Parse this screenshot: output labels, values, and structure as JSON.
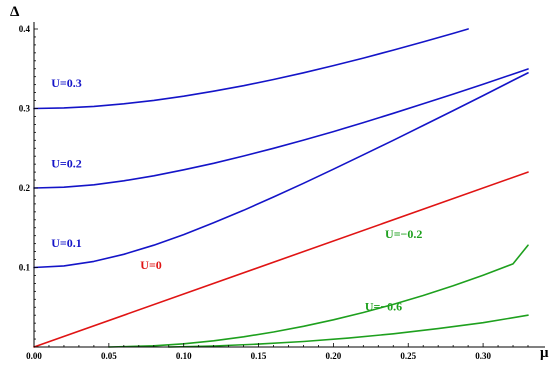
{
  "chart_data": {
    "type": "line",
    "title": "",
    "xlabel": "μ",
    "ylabel": "Δ",
    "xlim": [
      0.0,
      0.33
    ],
    "ylim": [
      0.0,
      0.4
    ],
    "x_ticks": [
      "0.00",
      "0.05",
      "0.10",
      "0.15",
      "0.20",
      "0.25",
      "0.30"
    ],
    "x_tick_values": [
      0.0,
      0.05,
      0.1,
      0.15,
      0.2,
      0.25,
      0.3
    ],
    "y_ticks": [
      "0.1",
      "0.2",
      "0.3",
      "0.4"
    ],
    "y_tick_values": [
      0.1,
      0.2,
      0.3,
      0.4
    ],
    "grid": false,
    "legend": "none (inline curve labels)",
    "series": [
      {
        "name": "U=0.3",
        "color": "#1414c8",
        "x": [
          0.0,
          0.02,
          0.04,
          0.06,
          0.08,
          0.1,
          0.12,
          0.14,
          0.16,
          0.18,
          0.2,
          0.22,
          0.24,
          0.26,
          0.28,
          0.29
        ],
        "y": [
          0.3,
          0.3007,
          0.3027,
          0.3059,
          0.3102,
          0.3155,
          0.3217,
          0.3287,
          0.3365,
          0.3449,
          0.3539,
          0.3634,
          0.3734,
          0.3838,
          0.3945,
          0.4
        ]
      },
      {
        "name": "U=0.2",
        "color": "#1414c8",
        "x": [
          0.0,
          0.02,
          0.04,
          0.06,
          0.08,
          0.1,
          0.12,
          0.14,
          0.16,
          0.18,
          0.2,
          0.22,
          0.24,
          0.26,
          0.28,
          0.3,
          0.32,
          0.33
        ],
        "y": [
          0.2,
          0.201,
          0.204,
          0.209,
          0.2154,
          0.2229,
          0.2311,
          0.2402,
          0.2499,
          0.2602,
          0.271,
          0.2823,
          0.2939,
          0.3059,
          0.3181,
          0.3306,
          0.3433,
          0.3497
        ]
      },
      {
        "name": "U=0.1",
        "color": "#1414c8",
        "x": [
          0.0,
          0.02,
          0.04,
          0.06,
          0.08,
          0.1,
          0.12,
          0.14,
          0.16,
          0.18,
          0.2,
          0.22,
          0.24,
          0.26,
          0.28,
          0.3,
          0.32,
          0.33
        ],
        "y": [
          0.1,
          0.102,
          0.1077,
          0.1166,
          0.128,
          0.1414,
          0.1562,
          0.172,
          0.1887,
          0.2059,
          0.2236,
          0.2417,
          0.26,
          0.2786,
          0.2973,
          0.3162,
          0.3353,
          0.3448
        ]
      },
      {
        "name": "U=0",
        "color": "#e01414",
        "x": [
          0.0,
          0.33
        ],
        "y": [
          0.0,
          0.22
        ]
      },
      {
        "name": "U=−0.2",
        "color": "#1ea01e",
        "x": [
          0.05,
          0.08,
          0.1,
          0.12,
          0.14,
          0.16,
          0.18,
          0.2,
          0.22,
          0.24,
          0.26,
          0.28,
          0.3,
          0.32,
          0.33
        ],
        "y": [
          0.0,
          0.0015,
          0.004,
          0.0078,
          0.0128,
          0.0189,
          0.026,
          0.0342,
          0.0434,
          0.0536,
          0.0648,
          0.077,
          0.0903,
          0.1045,
          0.128
        ]
      },
      {
        "name": "U=−0.6",
        "color": "#1ea01e",
        "x": [
          0.09,
          0.12,
          0.15,
          0.18,
          0.21,
          0.24,
          0.27,
          0.3,
          0.33
        ],
        "y": [
          0.0,
          0.0013,
          0.0036,
          0.0069,
          0.0112,
          0.0166,
          0.0231,
          0.0306,
          0.04
        ]
      }
    ]
  }
}
